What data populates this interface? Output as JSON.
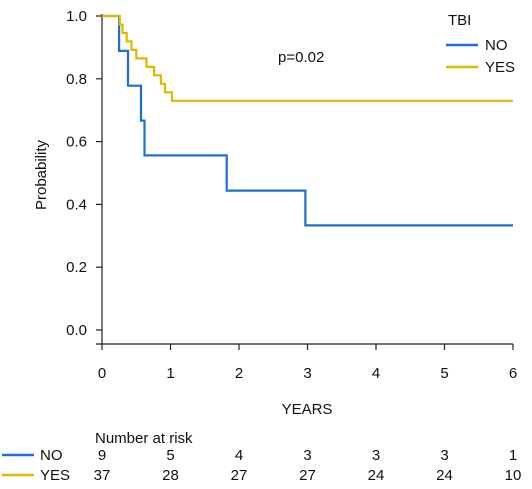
{
  "chart_data": {
    "type": "line",
    "subtype": "kaplan-meier step",
    "xlabel": "YEARS",
    "ylabel": "Probability",
    "xlim": [
      0,
      6
    ],
    "ylim": [
      0,
      1
    ],
    "xticks": [
      "0",
      "1",
      "2",
      "3",
      "4",
      "5",
      "6"
    ],
    "yticks": [
      "0.0",
      "0.2",
      "0.4",
      "0.6",
      "0.8",
      "1.0"
    ],
    "grid": false,
    "annotation": "p=0.02",
    "legend": {
      "title": "TBI",
      "position": "top-right"
    },
    "series": [
      {
        "name": "NO",
        "color": "#1f6fd1",
        "steps": [
          [
            0,
            1.0
          ],
          [
            0.25,
            0.889
          ],
          [
            0.38,
            0.778
          ],
          [
            0.57,
            0.667
          ],
          [
            0.62,
            0.556
          ],
          [
            1.82,
            0.444
          ],
          [
            2.97,
            0.333
          ],
          [
            6,
            0.333
          ]
        ]
      },
      {
        "name": "YES",
        "color": "#e0b800",
        "steps": [
          [
            0,
            1.0
          ],
          [
            0.26,
            0.973
          ],
          [
            0.3,
            0.946
          ],
          [
            0.36,
            0.919
          ],
          [
            0.43,
            0.892
          ],
          [
            0.5,
            0.865
          ],
          [
            0.65,
            0.838
          ],
          [
            0.76,
            0.811
          ],
          [
            0.86,
            0.784
          ],
          [
            0.92,
            0.757
          ],
          [
            1.02,
            0.73
          ],
          [
            6,
            0.73
          ]
        ]
      }
    ],
    "risk_table": {
      "title": "Number at risk",
      "times": [
        0,
        1,
        2,
        3,
        4,
        5,
        6
      ],
      "rows": [
        {
          "name": "NO",
          "color": "#1f6fd1",
          "values": [
            "9",
            "5",
            "4",
            "3",
            "3",
            "3",
            "1"
          ]
        },
        {
          "name": "YES",
          "color": "#e0b800",
          "values": [
            "37",
            "28",
            "27",
            "27",
            "24",
            "24",
            "10"
          ]
        }
      ]
    }
  }
}
